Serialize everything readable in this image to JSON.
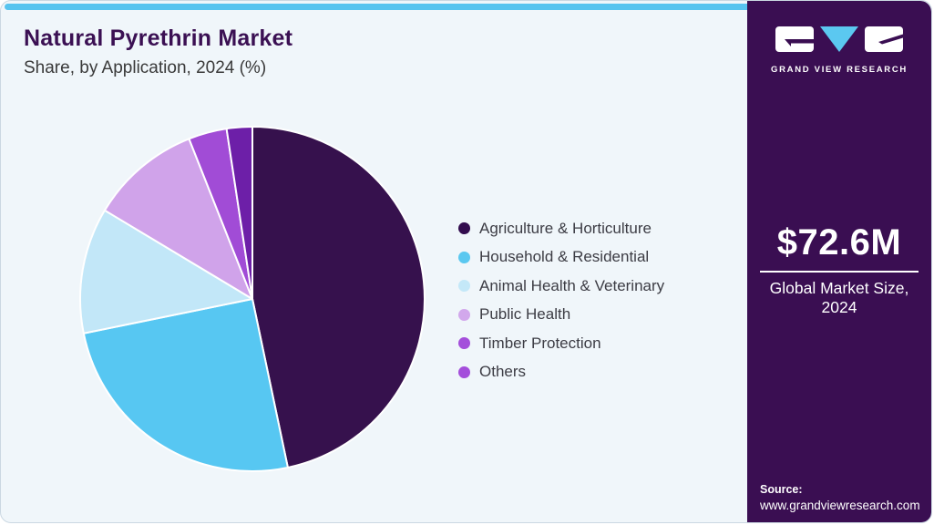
{
  "header": {
    "title": "Natural Pyrethrin Market",
    "subtitle": "Share, by Application, 2024 (%)"
  },
  "chart_data": {
    "type": "pie",
    "title": "Natural Pyrethrin Market Share, by Application, 2024 (%)",
    "categories": [
      "Agriculture & Horticulture",
      "Household & Residential",
      "Animal Health & Veterinary",
      "Public Health",
      "Timber Protection",
      "Others"
    ],
    "values": [
      46.7,
      25.1,
      11.8,
      10.4,
      3.6,
      2.4
    ],
    "unit": "%",
    "colors": [
      "#36114D",
      "#57C7F2",
      "#C2E7F8",
      "#D0A3EA",
      "#A14CD6",
      "#6D1FA8"
    ],
    "legend_dot_colors": [
      "#320C4E",
      "#5BC8F0",
      "#C4E8F8",
      "#D2A8EC",
      "#A44EDB",
      "#A44EDB"
    ],
    "start_angle_deg": 0,
    "direction": "clockwise",
    "slice_border_color": "#FFFFFF",
    "legend_position": "right",
    "grid": false
  },
  "sidebar": {
    "brand": {
      "name": "GRAND VIEW RESEARCH",
      "logo_icon": "grand-view-research-logo",
      "accent_color": "#5BC8F0",
      "background_color": "#3A0E52"
    },
    "market_size": {
      "value": "$72.6M",
      "label": "Global Market Size, 2024"
    },
    "source": {
      "label": "Source:",
      "url": "www.grandviewresearch.com"
    }
  },
  "theme": {
    "panel_background": "#F0F6FA",
    "top_strip_color": "#58C4EF",
    "title_color": "#3B1053",
    "subtitle_color": "#3A3A3A",
    "legend_text_color": "#3C3C44"
  }
}
